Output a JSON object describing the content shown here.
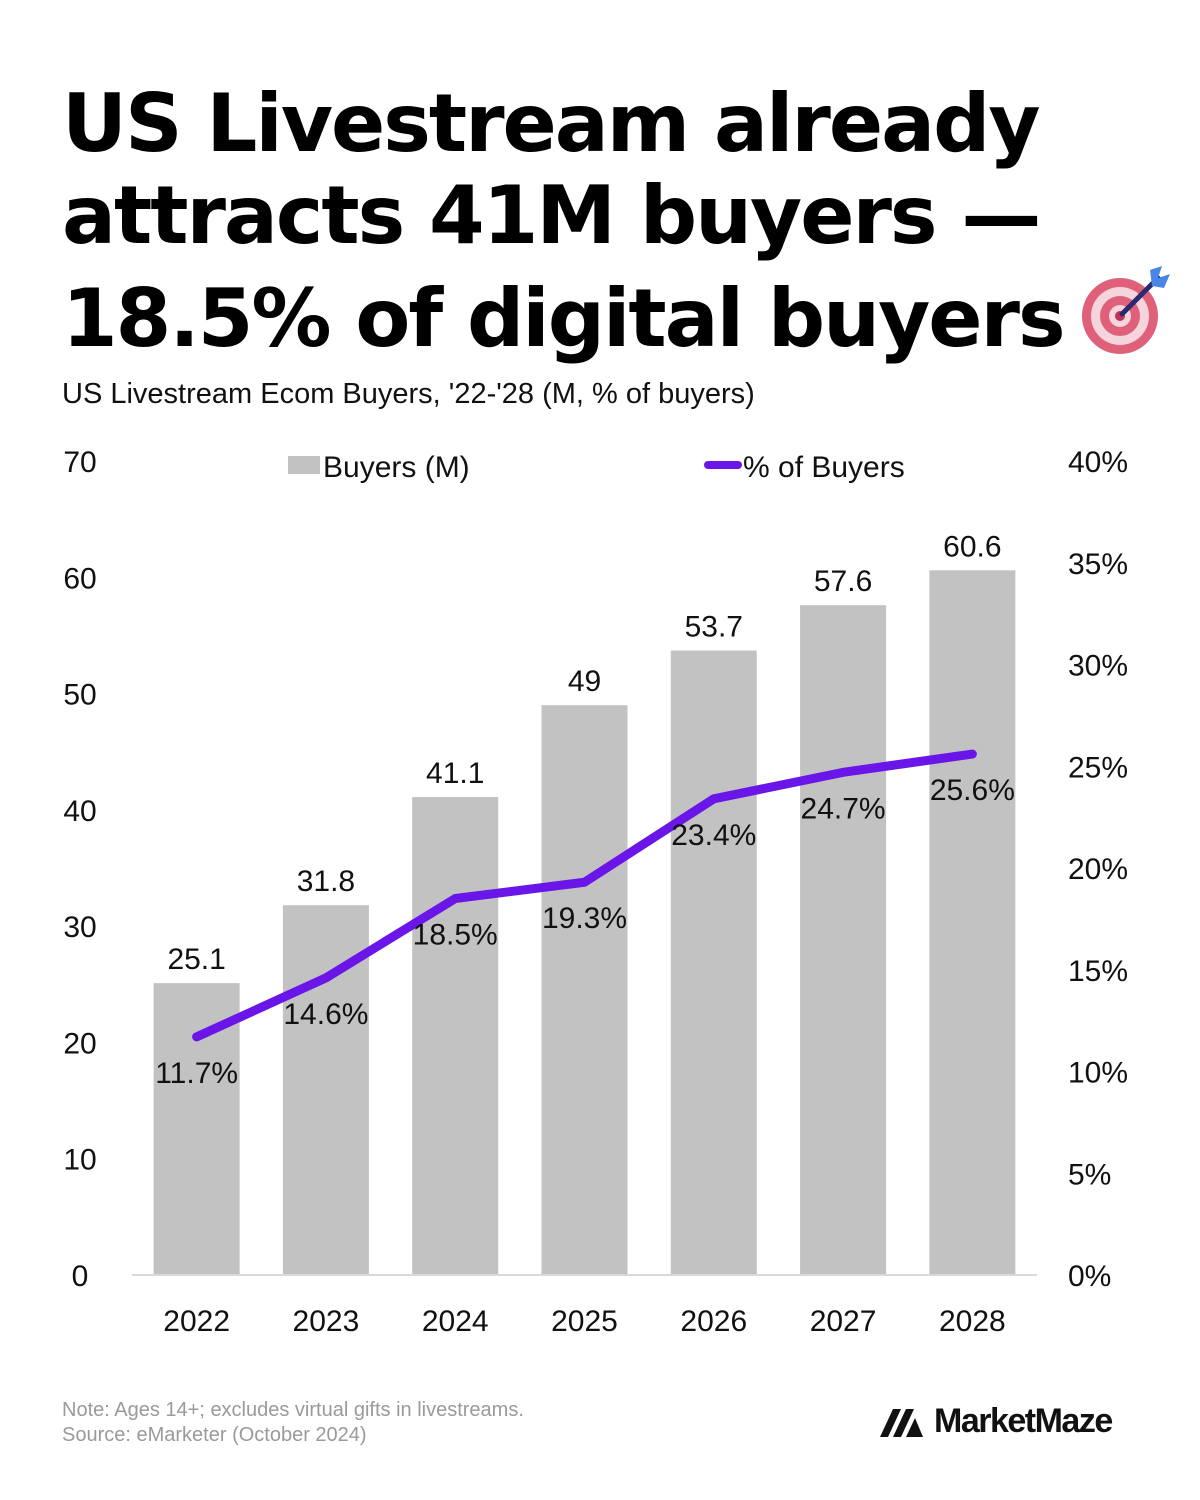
{
  "title": {
    "line1": "US Livestream already",
    "line2": "attracts 41M buyers —",
    "line3": "18.5% of digital buyers"
  },
  "subtitle": "US Livestream Ecom Buyers, '22-'28 (M, % of buyers)",
  "icon": "target-bullseye-icon",
  "colors": {
    "bars": "#c2c2c2",
    "line": "#6a16e8",
    "text": "#111111",
    "note": "#9a9a9a"
  },
  "chart_data": {
    "type": "bar",
    "title": "US Livestream Ecom Buyers, '22-'28 (M, % of buyers)",
    "categories": [
      "2022",
      "2023",
      "2024",
      "2025",
      "2026",
      "2027",
      "2028"
    ],
    "series": [
      {
        "name": "Buyers (M)",
        "type": "bar",
        "axis": "left",
        "values": [
          25.1,
          31.8,
          41.1,
          49,
          53.7,
          57.6,
          60.6
        ],
        "labels": [
          "25.1",
          "31.8",
          "41.1",
          "49",
          "53.7",
          "57.6",
          "60.6"
        ]
      },
      {
        "name": "% of Buyers",
        "type": "line",
        "axis": "right",
        "values": [
          11.7,
          14.6,
          18.5,
          19.3,
          23.4,
          24.7,
          25.6
        ],
        "labels": [
          "11.7%",
          "14.6%",
          "18.5%",
          "19.3%",
          "23.4%",
          "24.7%",
          "25.6%"
        ]
      }
    ],
    "left_axis": {
      "min": 0,
      "max": 70,
      "ticks": [
        "0",
        "10",
        "20",
        "30",
        "40",
        "50",
        "60",
        "70"
      ]
    },
    "right_axis": {
      "min": 0,
      "max": 40,
      "ticks": [
        "0%",
        "5%",
        "10%",
        "15%",
        "20%",
        "25%",
        "30%",
        "35%",
        "40%"
      ]
    },
    "legend": [
      "Buyers (M)",
      "% of Buyers"
    ],
    "legend_position": "top",
    "grid": false
  },
  "footer": {
    "note": "Note: Ages 14+; excludes virtual gifts in livestreams.",
    "source": "Source: eMarketer (October 2024)",
    "brand": "MarketMaze"
  }
}
